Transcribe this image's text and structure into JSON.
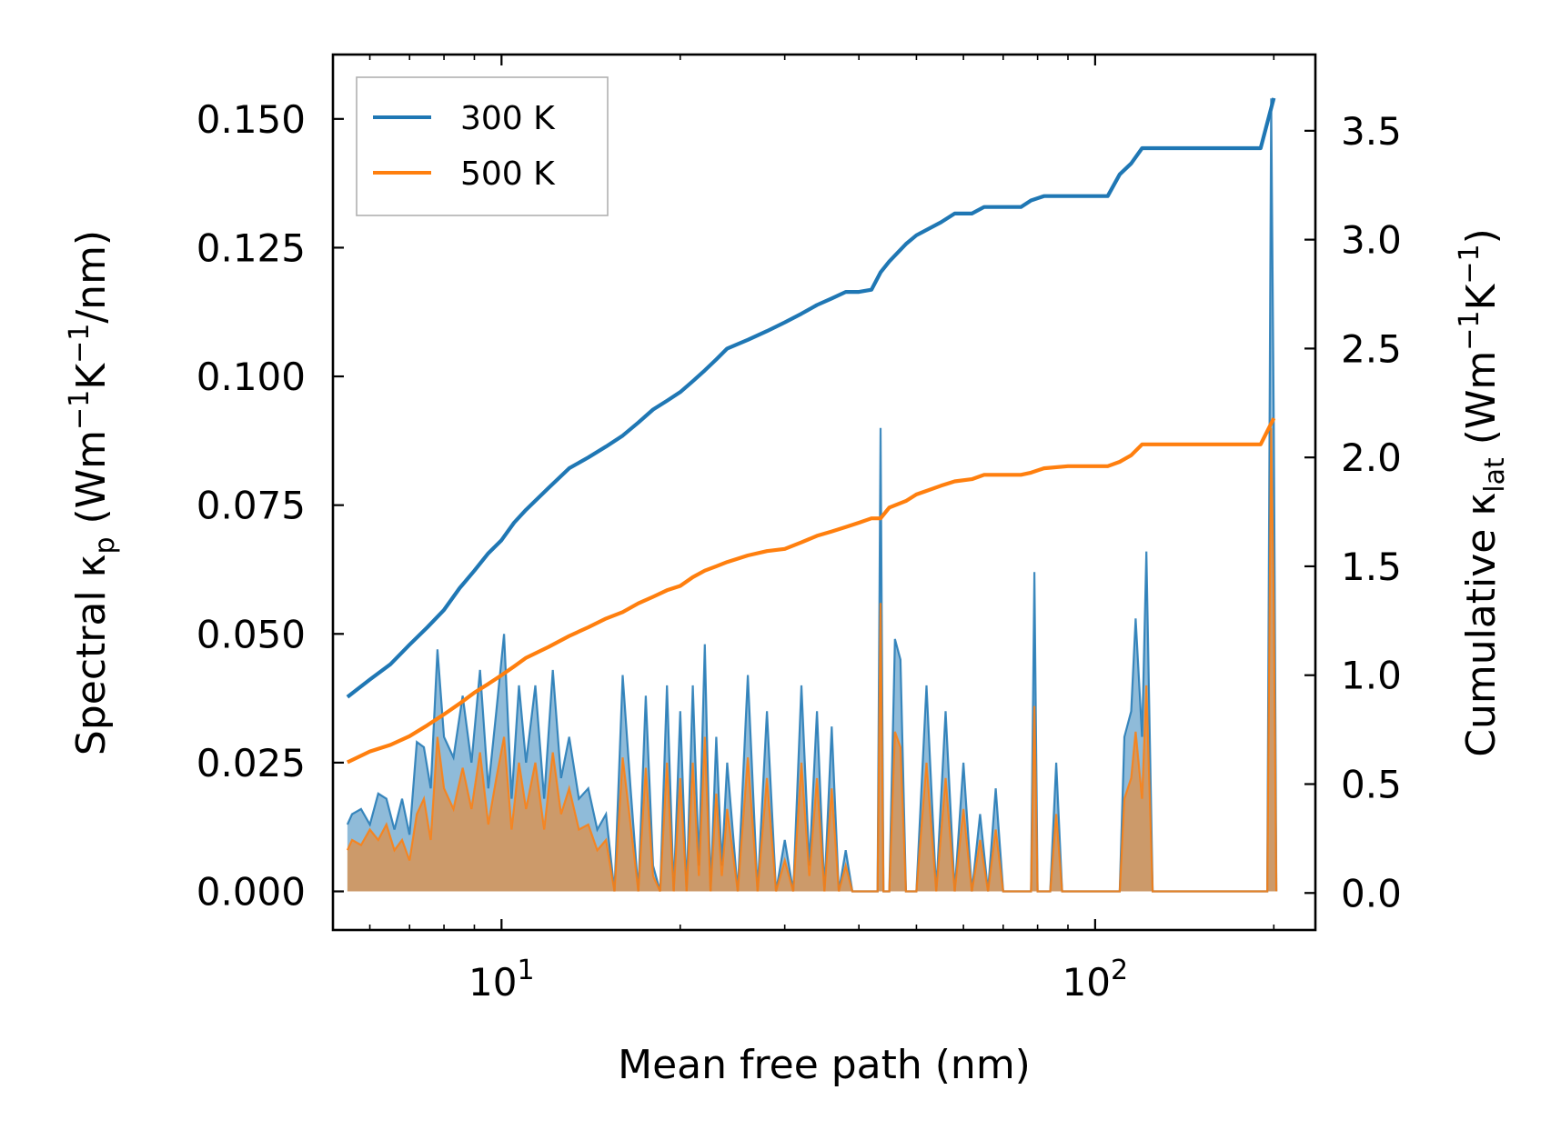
{
  "chart_data": {
    "type": "line",
    "xscale": "log",
    "xlabel": "Mean free path (nm)",
    "ylabel_left_parts": [
      "Spectral κ",
      "p",
      " (Wm",
      "−1",
      "K",
      "−1",
      "/nm)"
    ],
    "ylabel_right_parts": [
      "Cumulative κ",
      "lat",
      " (Wm",
      "−1",
      "K",
      "−1",
      ")"
    ],
    "xlim": [
      5.2,
      235
    ],
    "ylim_left": [
      -0.0075,
      0.1625
    ],
    "ylim_right": [
      -0.17,
      3.85
    ],
    "x_ticks": [
      {
        "value": 10,
        "base": "10",
        "exp": "1"
      },
      {
        "value": 100,
        "base": "10",
        "exp": "2"
      }
    ],
    "y_left_ticks": [
      {
        "value": 0.0,
        "label": "0.000"
      },
      {
        "value": 0.025,
        "label": "0.025"
      },
      {
        "value": 0.05,
        "label": "0.050"
      },
      {
        "value": 0.075,
        "label": "0.075"
      },
      {
        "value": 0.1,
        "label": "0.100"
      },
      {
        "value": 0.125,
        "label": "0.125"
      },
      {
        "value": 0.15,
        "label": "0.150"
      }
    ],
    "y_right_ticks": [
      {
        "value": 0.0,
        "label": "0.0"
      },
      {
        "value": 0.5,
        "label": "0.5"
      },
      {
        "value": 1.0,
        "label": "1.0"
      },
      {
        "value": 1.5,
        "label": "1.5"
      },
      {
        "value": 2.0,
        "label": "2.0"
      },
      {
        "value": 2.5,
        "label": "2.5"
      },
      {
        "value": 3.0,
        "label": "3.0"
      },
      {
        "value": 3.5,
        "label": "3.5"
      }
    ],
    "legend": {
      "position": "upper-left",
      "entries": [
        {
          "label": "300 K",
          "color": "#1f77b4"
        },
        {
          "label": "500 K",
          "color": "#ff7f0e"
        }
      ]
    },
    "series": [
      {
        "name": "300 K",
        "color": "#1f77b4",
        "cumulative": {
          "x": [
            5.5,
            6.0,
            6.5,
            7.0,
            7.5,
            8.0,
            8.5,
            9.0,
            9.5,
            10.0,
            10.5,
            11.0,
            12.0,
            13.0,
            14.0,
            15.0,
            16.0,
            17.0,
            18.0,
            19.0,
            20.0,
            21.0,
            22.0,
            23.0,
            24.0,
            26.0,
            28.0,
            30.0,
            32.0,
            34.0,
            36.0,
            38.0,
            40.0,
            42.0,
            43.5,
            45.0,
            48.0,
            50.0,
            55.0,
            58.0,
            62.0,
            65.0,
            75.0,
            78.0,
            82.0,
            90.0,
            105.0,
            110.0,
            115.0,
            120.0,
            125.0,
            190.0,
            200.0
          ],
          "y": [
            0.9,
            0.98,
            1.05,
            1.14,
            1.22,
            1.3,
            1.4,
            1.48,
            1.56,
            1.62,
            1.7,
            1.76,
            1.86,
            1.95,
            2.0,
            2.05,
            2.1,
            2.16,
            2.22,
            2.26,
            2.3,
            2.35,
            2.4,
            2.45,
            2.5,
            2.54,
            2.58,
            2.62,
            2.66,
            2.7,
            2.73,
            2.76,
            2.76,
            2.77,
            2.85,
            2.9,
            2.98,
            3.02,
            3.08,
            3.12,
            3.12,
            3.15,
            3.15,
            3.18,
            3.2,
            3.2,
            3.2,
            3.3,
            3.35,
            3.42,
            3.42,
            3.42,
            3.65
          ]
        },
        "spectral": {
          "x": [
            5.5,
            5.6,
            5.8,
            6.0,
            6.2,
            6.4,
            6.6,
            6.8,
            7.0,
            7.2,
            7.4,
            7.6,
            7.8,
            8.0,
            8.3,
            8.6,
            8.9,
            9.2,
            9.5,
            9.8,
            10.1,
            10.4,
            10.7,
            11.0,
            11.4,
            11.8,
            12.2,
            12.6,
            13.0,
            13.5,
            14.0,
            14.5,
            15.0,
            15.5,
            16.0,
            16.5,
            17.0,
            17.5,
            18.0,
            18.5,
            19.0,
            19.5,
            20.0,
            20.5,
            21.0,
            21.5,
            22.0,
            22.5,
            23.0,
            23.5,
            24.0,
            25.0,
            26.0,
            27.0,
            28.0,
            29.0,
            30.0,
            31.0,
            32.0,
            33.0,
            34.0,
            35.0,
            36.0,
            37.0,
            38.0,
            39.0,
            40.0,
            41.0,
            42.0,
            43.0,
            43.5,
            44.0,
            45.0,
            46.0,
            47.0,
            48.0,
            49.0,
            50.0,
            52.0,
            54.0,
            56.0,
            58.0,
            60.0,
            62.0,
            64.0,
            66.0,
            68.0,
            70.0,
            75.0,
            78.0,
            79.0,
            80.0,
            84.0,
            86.0,
            88.0,
            100.0,
            110.0,
            112.0,
            115.0,
            117.0,
            120.0,
            122.0,
            125.0,
            130.0,
            150.0,
            180.0,
            195.0,
            198.0,
            200.0,
            202.0
          ],
          "y": [
            0.013,
            0.015,
            0.016,
            0.013,
            0.019,
            0.018,
            0.012,
            0.018,
            0.011,
            0.029,
            0.028,
            0.02,
            0.047,
            0.03,
            0.026,
            0.038,
            0.025,
            0.043,
            0.02,
            0.035,
            0.05,
            0.018,
            0.04,
            0.025,
            0.04,
            0.018,
            0.043,
            0.022,
            0.03,
            0.018,
            0.02,
            0.012,
            0.015,
            0.0,
            0.042,
            0.02,
            0.0,
            0.038,
            0.005,
            0.0,
            0.04,
            0.0,
            0.035,
            0.0,
            0.04,
            0.005,
            0.048,
            0.0,
            0.03,
            0.005,
            0.025,
            0.0,
            0.042,
            0.0,
            0.035,
            0.0,
            0.01,
            0.0,
            0.04,
            0.005,
            0.035,
            0.0,
            0.032,
            0.0,
            0.008,
            0.0,
            0.0,
            0.0,
            0.0,
            0.0,
            0.09,
            0.0,
            0.0,
            0.049,
            0.045,
            0.0,
            0.0,
            0.0,
            0.04,
            0.0,
            0.035,
            0.0,
            0.025,
            0.0,
            0.015,
            0.0,
            0.02,
            0.0,
            0.0,
            0.0,
            0.062,
            0.0,
            0.0,
            0.025,
            0.0,
            0.0,
            0.0,
            0.03,
            0.035,
            0.053,
            0.03,
            0.066,
            0.0,
            0.0,
            0.0,
            0.0,
            0.0,
            0.154,
            0.09,
            0.0
          ]
        }
      },
      {
        "name": "500 K",
        "color": "#ff7f0e",
        "cumulative": {
          "x": [
            5.5,
            6.0,
            6.5,
            7.0,
            7.5,
            8.0,
            8.5,
            9.0,
            9.5,
            10.0,
            10.5,
            11.0,
            12.0,
            13.0,
            14.0,
            15.0,
            16.0,
            17.0,
            18.0,
            19.0,
            20.0,
            21.0,
            22.0,
            23.0,
            24.0,
            26.0,
            28.0,
            30.0,
            32.0,
            34.0,
            36.0,
            38.0,
            40.0,
            42.0,
            43.5,
            45.0,
            48.0,
            50.0,
            55.0,
            58.0,
            62.0,
            65.0,
            75.0,
            78.0,
            82.0,
            90.0,
            105.0,
            110.0,
            115.0,
            120.0,
            125.0,
            190.0,
            200.0
          ],
          "y": [
            0.6,
            0.65,
            0.68,
            0.72,
            0.77,
            0.82,
            0.87,
            0.92,
            0.96,
            1.0,
            1.04,
            1.08,
            1.13,
            1.18,
            1.22,
            1.26,
            1.29,
            1.33,
            1.36,
            1.39,
            1.41,
            1.45,
            1.48,
            1.5,
            1.52,
            1.55,
            1.57,
            1.58,
            1.61,
            1.64,
            1.66,
            1.68,
            1.7,
            1.72,
            1.72,
            1.77,
            1.8,
            1.83,
            1.87,
            1.89,
            1.9,
            1.92,
            1.92,
            1.93,
            1.95,
            1.96,
            1.96,
            1.98,
            2.01,
            2.06,
            2.06,
            2.06,
            2.18
          ]
        },
        "spectral": {
          "x": [
            5.5,
            5.6,
            5.8,
            6.0,
            6.2,
            6.4,
            6.6,
            6.8,
            7.0,
            7.2,
            7.4,
            7.6,
            7.8,
            8.0,
            8.3,
            8.6,
            8.9,
            9.2,
            9.5,
            9.8,
            10.1,
            10.4,
            10.7,
            11.0,
            11.4,
            11.8,
            12.2,
            12.6,
            13.0,
            13.5,
            14.0,
            14.5,
            15.0,
            15.5,
            16.0,
            16.5,
            17.0,
            17.5,
            18.0,
            18.5,
            19.0,
            19.5,
            20.0,
            20.5,
            21.0,
            21.5,
            22.0,
            22.5,
            23.0,
            23.5,
            24.0,
            25.0,
            26.0,
            27.0,
            28.0,
            29.0,
            30.0,
            31.0,
            32.0,
            33.0,
            34.0,
            35.0,
            36.0,
            37.0,
            38.0,
            39.0,
            40.0,
            41.0,
            42.0,
            43.0,
            43.5,
            44.0,
            45.0,
            46.0,
            47.0,
            48.0,
            49.0,
            50.0,
            52.0,
            54.0,
            56.0,
            58.0,
            60.0,
            62.0,
            64.0,
            66.0,
            68.0,
            70.0,
            75.0,
            78.0,
            79.0,
            80.0,
            84.0,
            86.0,
            88.0,
            100.0,
            110.0,
            112.0,
            115.0,
            117.0,
            120.0,
            122.0,
            125.0,
            130.0,
            150.0,
            180.0,
            195.0,
            198.0,
            200.0,
            202.0
          ],
          "y": [
            0.008,
            0.01,
            0.009,
            0.012,
            0.01,
            0.013,
            0.008,
            0.01,
            0.006,
            0.015,
            0.018,
            0.01,
            0.03,
            0.02,
            0.016,
            0.024,
            0.016,
            0.027,
            0.013,
            0.022,
            0.03,
            0.012,
            0.025,
            0.016,
            0.025,
            0.012,
            0.027,
            0.015,
            0.02,
            0.012,
            0.013,
            0.008,
            0.01,
            0.0,
            0.026,
            0.013,
            0.0,
            0.024,
            0.003,
            0.0,
            0.025,
            0.0,
            0.022,
            0.0,
            0.025,
            0.003,
            0.03,
            0.0,
            0.019,
            0.003,
            0.016,
            0.0,
            0.026,
            0.0,
            0.022,
            0.0,
            0.006,
            0.0,
            0.025,
            0.003,
            0.022,
            0.0,
            0.02,
            0.0,
            0.005,
            0.0,
            0.0,
            0.0,
            0.0,
            0.0,
            0.056,
            0.0,
            0.0,
            0.031,
            0.028,
            0.0,
            0.0,
            0.0,
            0.025,
            0.0,
            0.022,
            0.0,
            0.016,
            0.0,
            0.01,
            0.0,
            0.012,
            0.0,
            0.0,
            0.0,
            0.036,
            0.0,
            0.0,
            0.015,
            0.0,
            0.0,
            0.0,
            0.018,
            0.022,
            0.031,
            0.018,
            0.04,
            0.0,
            0.0,
            0.0,
            0.0,
            0.0,
            0.09,
            0.055,
            0.0
          ]
        }
      }
    ]
  }
}
